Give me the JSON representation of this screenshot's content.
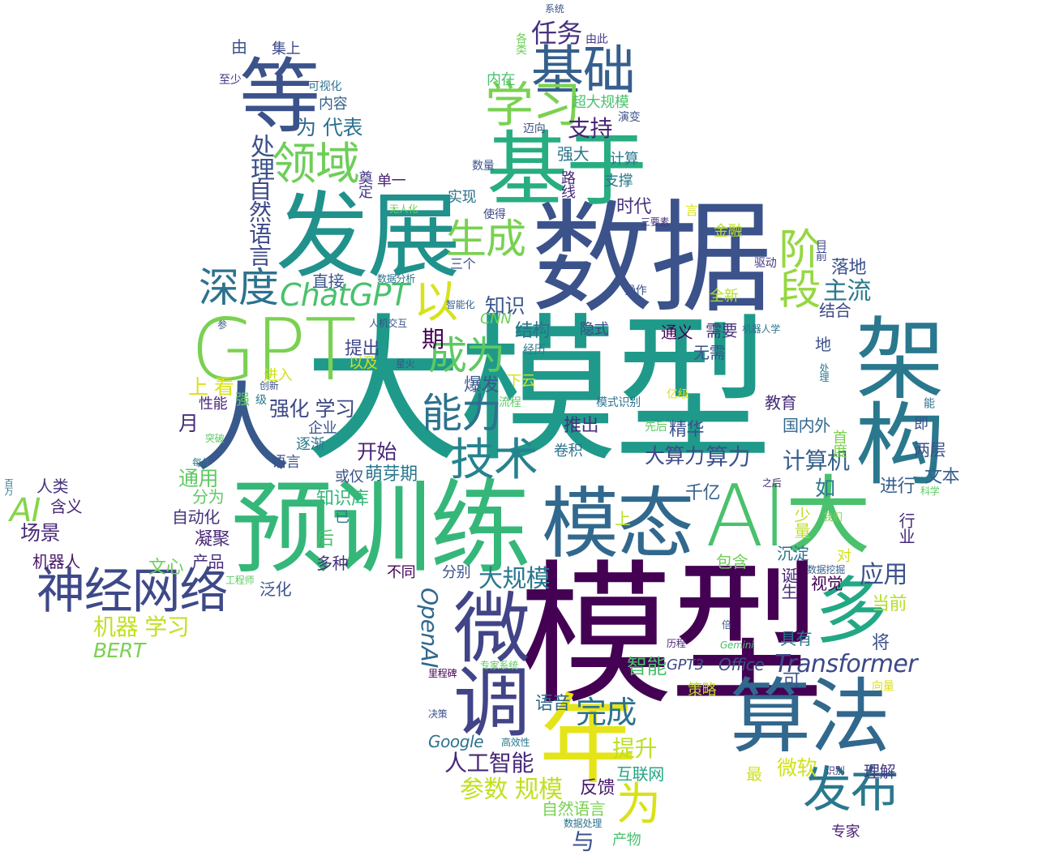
{
  "words": [
    {
      "text": "模型",
      "color": "#440154"
    },
    {
      "text": "大模型",
      "color": "#1f9a8a"
    },
    {
      "text": "数据",
      "color": "#3b528b"
    },
    {
      "text": "预训练",
      "color": "#35b779"
    },
    {
      "text": "GPT",
      "color": "#7ad151"
    },
    {
      "text": "发展",
      "color": "#21918c"
    },
    {
      "text": "基于",
      "color": "#27ad81"
    },
    {
      "text": "AI大",
      "color": "#4ac16d"
    },
    {
      "text": "架构",
      "color": "#2a788e"
    },
    {
      "text": "模态",
      "color": "#31688e"
    },
    {
      "text": "算法",
      "color": "#31688e"
    },
    {
      "text": "微调",
      "color": "#414487"
    },
    {
      "text": "年",
      "color": "#e5e419"
    },
    {
      "text": "等",
      "color": "#3b528b"
    },
    {
      "text": "基础",
      "color": "#355f8d"
    },
    {
      "text": "神经网络",
      "color": "#3e4989"
    },
    {
      "text": "人",
      "color": "#38598c"
    },
    {
      "text": "多",
      "color": "#22a884"
    },
    {
      "text": "发布",
      "color": "#2a788e"
    },
    {
      "text": "技术",
      "color": "#26828e"
    },
    {
      "text": "能力",
      "color": "#2c728e"
    },
    {
      "text": "成为",
      "color": "#5ec962"
    },
    {
      "text": "领域",
      "color": "#6ece58"
    },
    {
      "text": "深度",
      "color": "#2c728e"
    },
    {
      "text": "生成",
      "color": "#7ad151"
    },
    {
      "text": "学习",
      "color": "#7ad151"
    },
    {
      "text": "阶段",
      "color": "#95d840"
    },
    {
      "text": "ChatGPT",
      "color": "#4ac16d"
    },
    {
      "text": "以",
      "color": "#d8e219"
    },
    {
      "text": "AI",
      "color": "#86d549"
    },
    {
      "text": "Transformer",
      "color": "#3e4989"
    },
    {
      "text": "为",
      "color": "#d8e219"
    },
    {
      "text": "完成",
      "color": "#2c728e"
    },
    {
      "text": "任务",
      "color": "#46327e"
    },
    {
      "text": "支持",
      "color": "#482475"
    },
    {
      "text": "处理",
      "color": "#3b528b"
    },
    {
      "text": "自然语言",
      "color": "#3e4989"
    },
    {
      "text": "代表",
      "color": "#2c728e"
    },
    {
      "text": "为",
      "color": "#31688e"
    },
    {
      "text": "OpenAI",
      "color": "#31688e"
    },
    {
      "text": "应用",
      "color": "#3b528b"
    },
    {
      "text": "大规模",
      "color": "#2a788e"
    },
    {
      "text": "机器 学习",
      "color": "#c2df23"
    },
    {
      "text": "BERT",
      "color": "#7ad151"
    },
    {
      "text": "参数 规模",
      "color": "#c2df23"
    },
    {
      "text": "人工智能",
      "color": "#482878"
    },
    {
      "text": "提升",
      "color": "#bddf26"
    },
    {
      "text": "知识",
      "color": "#38598c"
    },
    {
      "text": "期",
      "color": "#440154"
    },
    {
      "text": "结构",
      "color": "#2c728e"
    },
    {
      "text": "主流",
      "color": "#2a788e"
    },
    {
      "text": "算力",
      "color": "#3b528b"
    },
    {
      "text": "计算机",
      "color": "#355f8d"
    },
    {
      "text": "大算力",
      "color": "#3e4989"
    },
    {
      "text": "时代",
      "color": "#46327e"
    },
    {
      "text": "与",
      "color": "#3b528b"
    },
    {
      "text": "当前",
      "color": "#b5de2b"
    },
    {
      "text": "场景",
      "color": "#482878"
    },
    {
      "text": "通用",
      "color": "#5ec962"
    },
    {
      "text": "开始",
      "color": "#482475"
    },
    {
      "text": "上 看",
      "color": "#d8e219"
    },
    {
      "text": "强化 学习",
      "color": "#3e4989"
    },
    {
      "text": "智能",
      "color": "#4ac16d"
    },
    {
      "text": "推出",
      "color": "#46327e"
    },
    {
      "text": "精华",
      "color": "#3b528b"
    },
    {
      "text": "Google",
      "color": "#2c728e"
    },
    {
      "text": "互联网",
      "color": "#22a884"
    },
    {
      "text": "微软",
      "color": "#d0e11c"
    },
    {
      "text": "进行",
      "color": "#355f8d"
    },
    {
      "text": "文本",
      "color": "#355f8d"
    },
    {
      "text": "语音",
      "color": "#31688e"
    },
    {
      "text": "Office",
      "color": "#3b528b"
    },
    {
      "text": "GPT3",
      "color": "#3e4989"
    },
    {
      "text": "反馈",
      "color": "#48186a"
    },
    {
      "text": "萌芽期",
      "color": "#2a788e"
    },
    {
      "text": "知识库",
      "color": "#35b779"
    },
    {
      "text": "文心",
      "color": "#6ece58"
    },
    {
      "text": "千亿",
      "color": "#355f8d"
    },
    {
      "text": "自然语言",
      "color": "#7ad151"
    },
    {
      "text": "爆发",
      "color": "#38598c"
    },
    {
      "text": "月",
      "color": "#472d7b"
    },
    {
      "text": "分为",
      "color": "#5ec962"
    },
    {
      "text": "含义",
      "color": "#482878"
    },
    {
      "text": "人类",
      "color": "#46327e"
    },
    {
      "text": "机器人",
      "color": "#48186a"
    },
    {
      "text": "提出",
      "color": "#3e4989"
    },
    {
      "text": "需要",
      "color": "#46327e"
    },
    {
      "text": "无需",
      "color": "#3b528b"
    },
    {
      "text": "通义",
      "color": "#440154"
    },
    {
      "text": "直接",
      "color": "#3b528b"
    },
    {
      "text": "落地",
      "color": "#3b528b"
    },
    {
      "text": "结合",
      "color": "#3e4989"
    },
    {
      "text": "教育",
      "color": "#472d7b"
    },
    {
      "text": "国内外",
      "color": "#31688e"
    },
    {
      "text": "视觉",
      "color": "#440154"
    },
    {
      "text": "两层",
      "color": "#3b528b"
    },
    {
      "text": "理解",
      "color": "#443983"
    },
    {
      "text": "行业",
      "color": "#482878"
    },
    {
      "text": "专家",
      "color": "#481f70"
    },
    {
      "text": "多种",
      "color": "#46327e"
    },
    {
      "text": "不同",
      "color": "#440154"
    },
    {
      "text": "分别",
      "color": "#3b528b"
    },
    {
      "text": "产品",
      "color": "#472d7b"
    },
    {
      "text": "凝聚",
      "color": "#482878"
    },
    {
      "text": "自动化",
      "color": "#46327e"
    },
    {
      "text": "泛化",
      "color": "#3b528b"
    },
    {
      "text": "包含",
      "color": "#6ece58"
    },
    {
      "text": "沉淀",
      "color": "#2c728e"
    },
    {
      "text": "具有",
      "color": "#2a788e"
    },
    {
      "text": "将",
      "color": "#3b528b"
    },
    {
      "text": "诞生",
      "color": "#482878"
    },
    {
      "text": "少量",
      "color": "#bddf26"
    },
    {
      "text": "对",
      "color": "#d0e11c"
    },
    {
      "text": "最",
      "color": "#d0e11c"
    },
    {
      "text": "策略",
      "color": "#c2df23"
    },
    {
      "text": "产物",
      "color": "#4ac16d"
    },
    {
      "text": "企业",
      "color": "#3b528b"
    },
    {
      "text": "语言",
      "color": "#3b528b"
    },
    {
      "text": "逐渐",
      "color": "#2a788e"
    },
    {
      "text": "性能",
      "color": "#482878"
    },
    {
      "text": "强",
      "color": "#5ec962"
    },
    {
      "text": "进入",
      "color": "#d0e11c"
    },
    {
      "text": "以及",
      "color": "#d0e11c"
    },
    {
      "text": "下云",
      "color": "#d0e11c"
    },
    {
      "text": "或仅",
      "color": "#3b528b"
    },
    {
      "text": "已",
      "color": "#2a788e"
    },
    {
      "text": "后",
      "color": "#4ac16d"
    },
    {
      "text": "上",
      "color": "#b5de2b"
    },
    {
      "text": "卷积",
      "color": "#2c728e"
    },
    {
      "text": "隐式",
      "color": "#3e4989"
    },
    {
      "text": "实现",
      "color": "#2c728e"
    },
    {
      "text": "CNN",
      "color": "#6ece58"
    },
    {
      "text": "全新",
      "color": "#b5de2b"
    },
    {
      "text": "金融",
      "color": "#bddf26"
    },
    {
      "text": "计算",
      "color": "#2a788e"
    },
    {
      "text": "支撑",
      "color": "#2a788e"
    },
    {
      "text": "强大",
      "color": "#2a788e"
    },
    {
      "text": "超大规模",
      "color": "#4ac16d"
    },
    {
      "text": "内在",
      "color": "#4ac16d"
    },
    {
      "text": "内容",
      "color": "#355f8d"
    },
    {
      "text": "集上",
      "color": "#3e4989"
    },
    {
      "text": "由",
      "color": "#3b528b"
    },
    {
      "text": "可",
      "color": "#3b528b"
    },
    {
      "text": "地",
      "color": "#3b528b"
    },
    {
      "text": "即",
      "color": "#3b528b"
    },
    {
      "text": "如",
      "color": "#2a788e"
    },
    {
      "text": "言",
      "color": "#d8e219"
    },
    {
      "text": "路线",
      "color": "#482878"
    },
    {
      "text": "奠定",
      "color": "#443983"
    },
    {
      "text": "单一",
      "color": "#482475"
    },
    {
      "text": "三个",
      "color": "#3b528b"
    },
    {
      "text": "系统",
      "color": "#3b528b"
    },
    {
      "text": "各类",
      "color": "#6ece58"
    },
    {
      "text": "由此",
      "color": "#443983"
    },
    {
      "text": "至少",
      "color": "#46327e"
    },
    {
      "text": "可视化",
      "color": "#2c728e"
    },
    {
      "text": "迈向",
      "color": "#3b528b"
    },
    {
      "text": "演变",
      "color": "#3b528b"
    },
    {
      "text": "数量",
      "color": "#3b528b"
    },
    {
      "text": "使得",
      "color": "#3e4989"
    },
    {
      "text": "三要素",
      "color": "#46327e"
    },
    {
      "text": "无人化",
      "color": "#6ece58"
    },
    {
      "text": "驱动",
      "color": "#443983"
    },
    {
      "text": "目前",
      "color": "#3e4989"
    },
    {
      "text": "数据分析",
      "color": "#2c728e"
    },
    {
      "text": "智能化",
      "color": "#355f8d"
    },
    {
      "text": "操作",
      "color": "#3b528b"
    },
    {
      "text": "人机交互",
      "color": "#3b528b"
    },
    {
      "text": "机器人学",
      "color": "#2c728e"
    },
    {
      "text": "参",
      "color": "#3b528b"
    },
    {
      "text": "经历",
      "color": "#2a788e"
    },
    {
      "text": "星火",
      "color": "#3b528b"
    },
    {
      "text": "创新",
      "color": "#3b528b"
    },
    {
      "text": "处理",
      "color": "#2a788e"
    },
    {
      "text": "级",
      "color": "#2a788e"
    },
    {
      "text": "流程",
      "color": "#5ec962"
    },
    {
      "text": "亿级",
      "color": "#d8e219"
    },
    {
      "text": "模式识别",
      "color": "#2c728e"
    },
    {
      "text": "先后",
      "color": "#5ec962"
    },
    {
      "text": "首度",
      "color": "#7ad151"
    },
    {
      "text": "能",
      "color": "#2c728e"
    },
    {
      "text": "突破",
      "color": "#5ec962"
    },
    {
      "text": "每年",
      "color": "#2a788e"
    },
    {
      "text": "百万",
      "color": "#2c728e"
    },
    {
      "text": "科学",
      "color": "#5ec962"
    },
    {
      "text": "之后",
      "color": "#482878"
    },
    {
      "text": "我们",
      "color": "#7ad151"
    },
    {
      "text": "工程师",
      "color": "#5ec962"
    },
    {
      "text": "数据挖掘",
      "color": "#355f8d"
    },
    {
      "text": "历程",
      "color": "#482878"
    },
    {
      "text": "Gemini",
      "color": "#4ac16d"
    },
    {
      "text": "倍",
      "color": "#3b528b"
    },
    {
      "text": "专家系统",
      "color": "#5ec962"
    },
    {
      "text": "里程碑",
      "color": "#440154"
    },
    {
      "text": "向量",
      "color": "#d8e219"
    },
    {
      "text": "决策",
      "color": "#3b528b"
    },
    {
      "text": "高效性",
      "color": "#2a788e"
    },
    {
      "text": "识别",
      "color": "#443983"
    },
    {
      "text": "数据处理",
      "color": "#2c728e"
    }
  ]
}
